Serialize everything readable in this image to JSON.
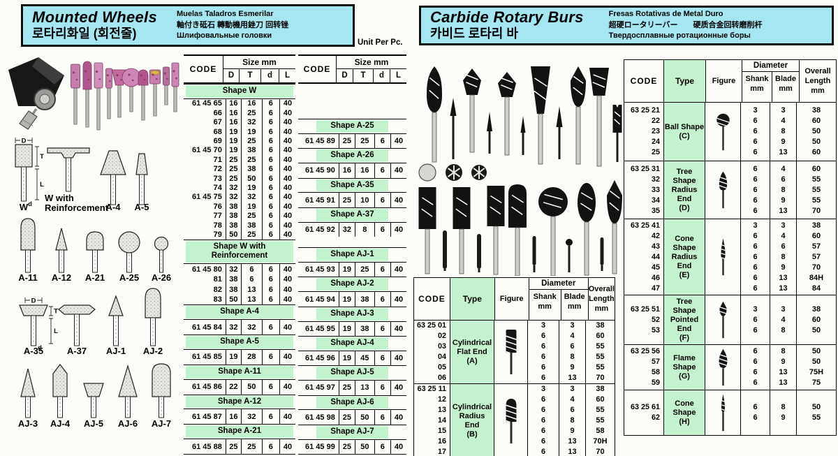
{
  "left": {
    "title": "Mounted Wheels",
    "title_korean": "로타리화일 (회전줄)",
    "subtitle_es": "Muelas Taladros Esmerilar",
    "subtitle_cjk": "軸付き砥石 轉動機用銼刀 回转锉",
    "subtitle_ru": "Шлифовальные головки",
    "unit_label": "Unit Per Pc.",
    "dim_labels": {
      "D": "D",
      "T": "T",
      "L": "L",
      "d": "d"
    },
    "diagrams": [
      {
        "label": "W"
      },
      {
        "label": "W with Reinforcement"
      },
      {
        "label": "A-4"
      },
      {
        "label": "A-5"
      },
      {
        "label": "A-11"
      },
      {
        "label": "A-12"
      },
      {
        "label": "A-21"
      },
      {
        "label": "A-25"
      },
      {
        "label": "A-26"
      },
      {
        "label": "A-35"
      },
      {
        "label": "A-37"
      },
      {
        "label": "AJ-1"
      },
      {
        "label": "AJ-2"
      },
      {
        "label": "AJ-3"
      },
      {
        "label": "AJ-4"
      },
      {
        "label": "AJ-5"
      },
      {
        "label": "AJ-6"
      },
      {
        "label": "AJ-7"
      }
    ],
    "tables": [
      {
        "headers": {
          "code": "CODE",
          "size": "Size mm",
          "cols": [
            "D",
            "T",
            "d",
            "L"
          ]
        },
        "sections": [
          {
            "title": "Shape W",
            "rows": [
              [
                "61 45 65",
                "16",
                "16",
                "6",
                "40"
              ],
              [
                "66",
                "16",
                "25",
                "6",
                "40"
              ],
              [
                "67",
                "16",
                "32",
                "6",
                "40"
              ],
              [
                "68",
                "19",
                "19",
                "6",
                "40"
              ],
              [
                "69",
                "19",
                "25",
                "6",
                "40"
              ],
              [
                "61 45 70",
                "19",
                "38",
                "6",
                "40"
              ],
              [
                "71",
                "25",
                "25",
                "6",
                "40"
              ],
              [
                "72",
                "25",
                "38",
                "6",
                "40"
              ],
              [
                "73",
                "25",
                "50",
                "6",
                "40"
              ],
              [
                "74",
                "32",
                "19",
                "6",
                "40"
              ],
              [
                "61 45 75",
                "32",
                "32",
                "6",
                "40"
              ],
              [
                "76",
                "38",
                "19",
                "6",
                "40"
              ],
              [
                "77",
                "38",
                "25",
                "6",
                "40"
              ],
              [
                "78",
                "38",
                "38",
                "6",
                "40"
              ],
              [
                "79",
                "50",
                "25",
                "6",
                "40"
              ]
            ]
          },
          {
            "title": "Shape W with Reinforcement",
            "rows": [
              [
                "61 45 80",
                "32",
                "6",
                "6",
                "40"
              ],
              [
                "81",
                "38",
                "6",
                "6",
                "40"
              ],
              [
                "82",
                "38",
                "13",
                "6",
                "40"
              ],
              [
                "83",
                "50",
                "13",
                "6",
                "40"
              ]
            ]
          },
          {
            "title": "Shape A-4",
            "rows": [
              [
                "61 45 84",
                "32",
                "32",
                "6",
                "40"
              ]
            ]
          },
          {
            "title": "Shape A-5",
            "rows": [
              [
                "61 45 85",
                "19",
                "28",
                "6",
                "40"
              ]
            ]
          },
          {
            "title": "Shape A-11",
            "rows": [
              [
                "61 45 86",
                "22",
                "50",
                "6",
                "40"
              ]
            ]
          },
          {
            "title": "Shape A-12",
            "rows": [
              [
                "61 45 87",
                "16",
                "32",
                "6",
                "40"
              ]
            ]
          },
          {
            "title": "Shape A-21",
            "rows": [
              [
                "61 45 88",
                "25",
                "25",
                "6",
                "40"
              ]
            ]
          }
        ]
      },
      {
        "headers": {
          "code": "CODE",
          "size": "Size mm",
          "cols": [
            "D",
            "T",
            "d",
            "L"
          ]
        },
        "sections": [
          {
            "title": "Shape A-25",
            "rows": [
              [
                "61 45 89",
                "25",
                "25",
                "6",
                "40"
              ]
            ]
          },
          {
            "title": "Shape A-26",
            "rows": [
              [
                "61 45 90",
                "16",
                "16",
                "6",
                "40"
              ]
            ]
          },
          {
            "title": "Shape A-35",
            "rows": [
              [
                "61 45 91",
                "25",
                "10",
                "6",
                "40"
              ]
            ]
          },
          {
            "title": "Shape A-37",
            "rows": [
              [
                "61 45 92",
                "32",
                "8",
                "6",
                "40"
              ]
            ]
          },
          {
            "title": "Shape AJ-1",
            "rows": [
              [
                "61 45 93",
                "19",
                "25",
                "6",
                "40"
              ]
            ]
          },
          {
            "title": "Shape AJ-2",
            "rows": [
              [
                "61 45 94",
                "19",
                "38",
                "6",
                "40"
              ]
            ]
          },
          {
            "title": "Shape AJ-3",
            "rows": [
              [
                "61 45 95",
                "19",
                "38",
                "6",
                "40"
              ]
            ]
          },
          {
            "title": "Shape AJ-4",
            "rows": [
              [
                "61 45 96",
                "19",
                "45",
                "6",
                "40"
              ]
            ]
          },
          {
            "title": "Shape AJ-5",
            "rows": [
              [
                "61 45 97",
                "25",
                "13",
                "6",
                "40"
              ]
            ]
          },
          {
            "title": "Shape AJ-6",
            "rows": [
              [
                "61 45 98",
                "25",
                "50",
                "6",
                "40"
              ]
            ]
          },
          {
            "title": "Shape AJ-7",
            "rows": [
              [
                "61 45 99",
                "25",
                "50",
                "6",
                "40"
              ]
            ]
          }
        ]
      }
    ]
  },
  "right": {
    "title": "Carbide Rotary Burs",
    "title_korean": "카비드 로타리 바",
    "subtitle_es": "Fresas Rotativas de Metal Duro",
    "subtitle_cjk": "超硬ロータリーバー　　硬质合金回转磨削杆",
    "subtitle_ru": "Твердосплавные ротационные боры",
    "tables": [
      {
        "headers": {
          "code": "CODE",
          "type": "Type",
          "figure": "Figure",
          "diameter": "Diameter",
          "shank": "Shank\nmm",
          "blade": "Blade\nmm",
          "overall": "Overall\nLength\nmm"
        },
        "groups": [
          {
            "codes": [
              "63 25 01",
              "02",
              "03",
              "04",
              "05",
              "06"
            ],
            "type_lines": [
              "Cylindrical",
              "Flat End",
              "(A)"
            ],
            "figure_icon": "cylindrical-flat-bur-icon",
            "shank": [
              "3",
              "6",
              "6",
              "6",
              "6",
              "6"
            ],
            "blade": [
              "3",
              "4",
              "6",
              "8",
              "9",
              "13"
            ],
            "length": [
              "38",
              "60",
              "55",
              "55",
              "55",
              "70"
            ]
          },
          {
            "codes": [
              "63 25 11",
              "12",
              "13",
              "14",
              "15",
              "16",
              "17"
            ],
            "type_lines": [
              "Cylindrical",
              "Radius",
              "End",
              "(B)"
            ],
            "figure_icon": "cylindrical-radius-bur-icon",
            "shank": [
              "3",
              "6",
              "6",
              "6",
              "6",
              "6",
              "6"
            ],
            "blade": [
              "3",
              "4",
              "6",
              "8",
              "9",
              "13",
              "13"
            ],
            "length": [
              "38",
              "60",
              "55",
              "55",
              "58",
              "70H",
              "70"
            ]
          }
        ]
      },
      {
        "headers": {
          "code": "CODE",
          "type": "Type",
          "figure": "Figure",
          "diameter": "Diameter",
          "shank": "Shank\nmm",
          "blade": "Blade\nmm",
          "overall": "Overall\nLength\nmm"
        },
        "groups": [
          {
            "codes": [
              "63 25 21",
              "22",
              "23",
              "24",
              "25"
            ],
            "type_lines": [
              "Ball Shape",
              "(C)"
            ],
            "figure_icon": "ball-bur-icon",
            "shank": [
              "3",
              "6",
              "6",
              "6",
              "6"
            ],
            "blade": [
              "3",
              "4",
              "8",
              "9",
              "13"
            ],
            "length": [
              "38",
              "60",
              "50",
              "50",
              "60"
            ]
          },
          {
            "codes": [
              "63 25 31",
              "32",
              "33",
              "34",
              "35"
            ],
            "type_lines": [
              "Tree",
              "Shape",
              "Radius",
              "End",
              "(D)"
            ],
            "figure_icon": "tree-radius-bur-icon",
            "shank": [
              "6",
              "6",
              "6",
              "6",
              "6"
            ],
            "blade": [
              "4",
              "6",
              "8",
              "9",
              "13"
            ],
            "length": [
              "60",
              "55",
              "55",
              "55",
              "70"
            ]
          },
          {
            "codes": [
              "63 25 41",
              "42",
              "43",
              "44",
              "45",
              "46",
              "47"
            ],
            "type_lines": [
              "Cone",
              "Shape",
              "Radius",
              "End",
              "(E)"
            ],
            "figure_icon": "cone-radius-bur-icon",
            "shank": [
              "3",
              "6",
              "6",
              "6",
              "6",
              "6",
              "6"
            ],
            "blade": [
              "3",
              "4",
              "6",
              "8",
              "9",
              "13",
              "13"
            ],
            "length": [
              "38",
              "60",
              "57",
              "57",
              "70",
              "84H",
              "84"
            ]
          },
          {
            "codes": [
              "63 25 51",
              "52",
              "53"
            ],
            "type_lines": [
              "Tree",
              "Shape",
              "Pointed",
              "End",
              "(F)"
            ],
            "figure_icon": "tree-pointed-bur-icon",
            "shank": [
              "3",
              "6",
              "6"
            ],
            "blade": [
              "3",
              "4",
              "8"
            ],
            "length": [
              "38",
              "60",
              "50"
            ]
          },
          {
            "codes": [
              "63 25 56",
              "57",
              "58",
              "59"
            ],
            "type_lines": [
              "Flame",
              "Shape",
              "(G)"
            ],
            "figure_icon": "flame-bur-icon",
            "shank": [
              "6",
              "6",
              "6",
              "6"
            ],
            "blade": [
              "8",
              "9",
              "13",
              "13"
            ],
            "length": [
              "50",
              "50",
              "75H",
              "75"
            ]
          },
          {
            "codes": [
              "63 25 61",
              "62"
            ],
            "type_lines": [
              "Cone",
              "Shape",
              "(H)"
            ],
            "figure_icon": "cone-bur-icon",
            "shank": [
              "6",
              "6"
            ],
            "blade": [
              "8",
              "9"
            ],
            "length": [
              "50",
              "55"
            ]
          }
        ]
      }
    ]
  }
}
